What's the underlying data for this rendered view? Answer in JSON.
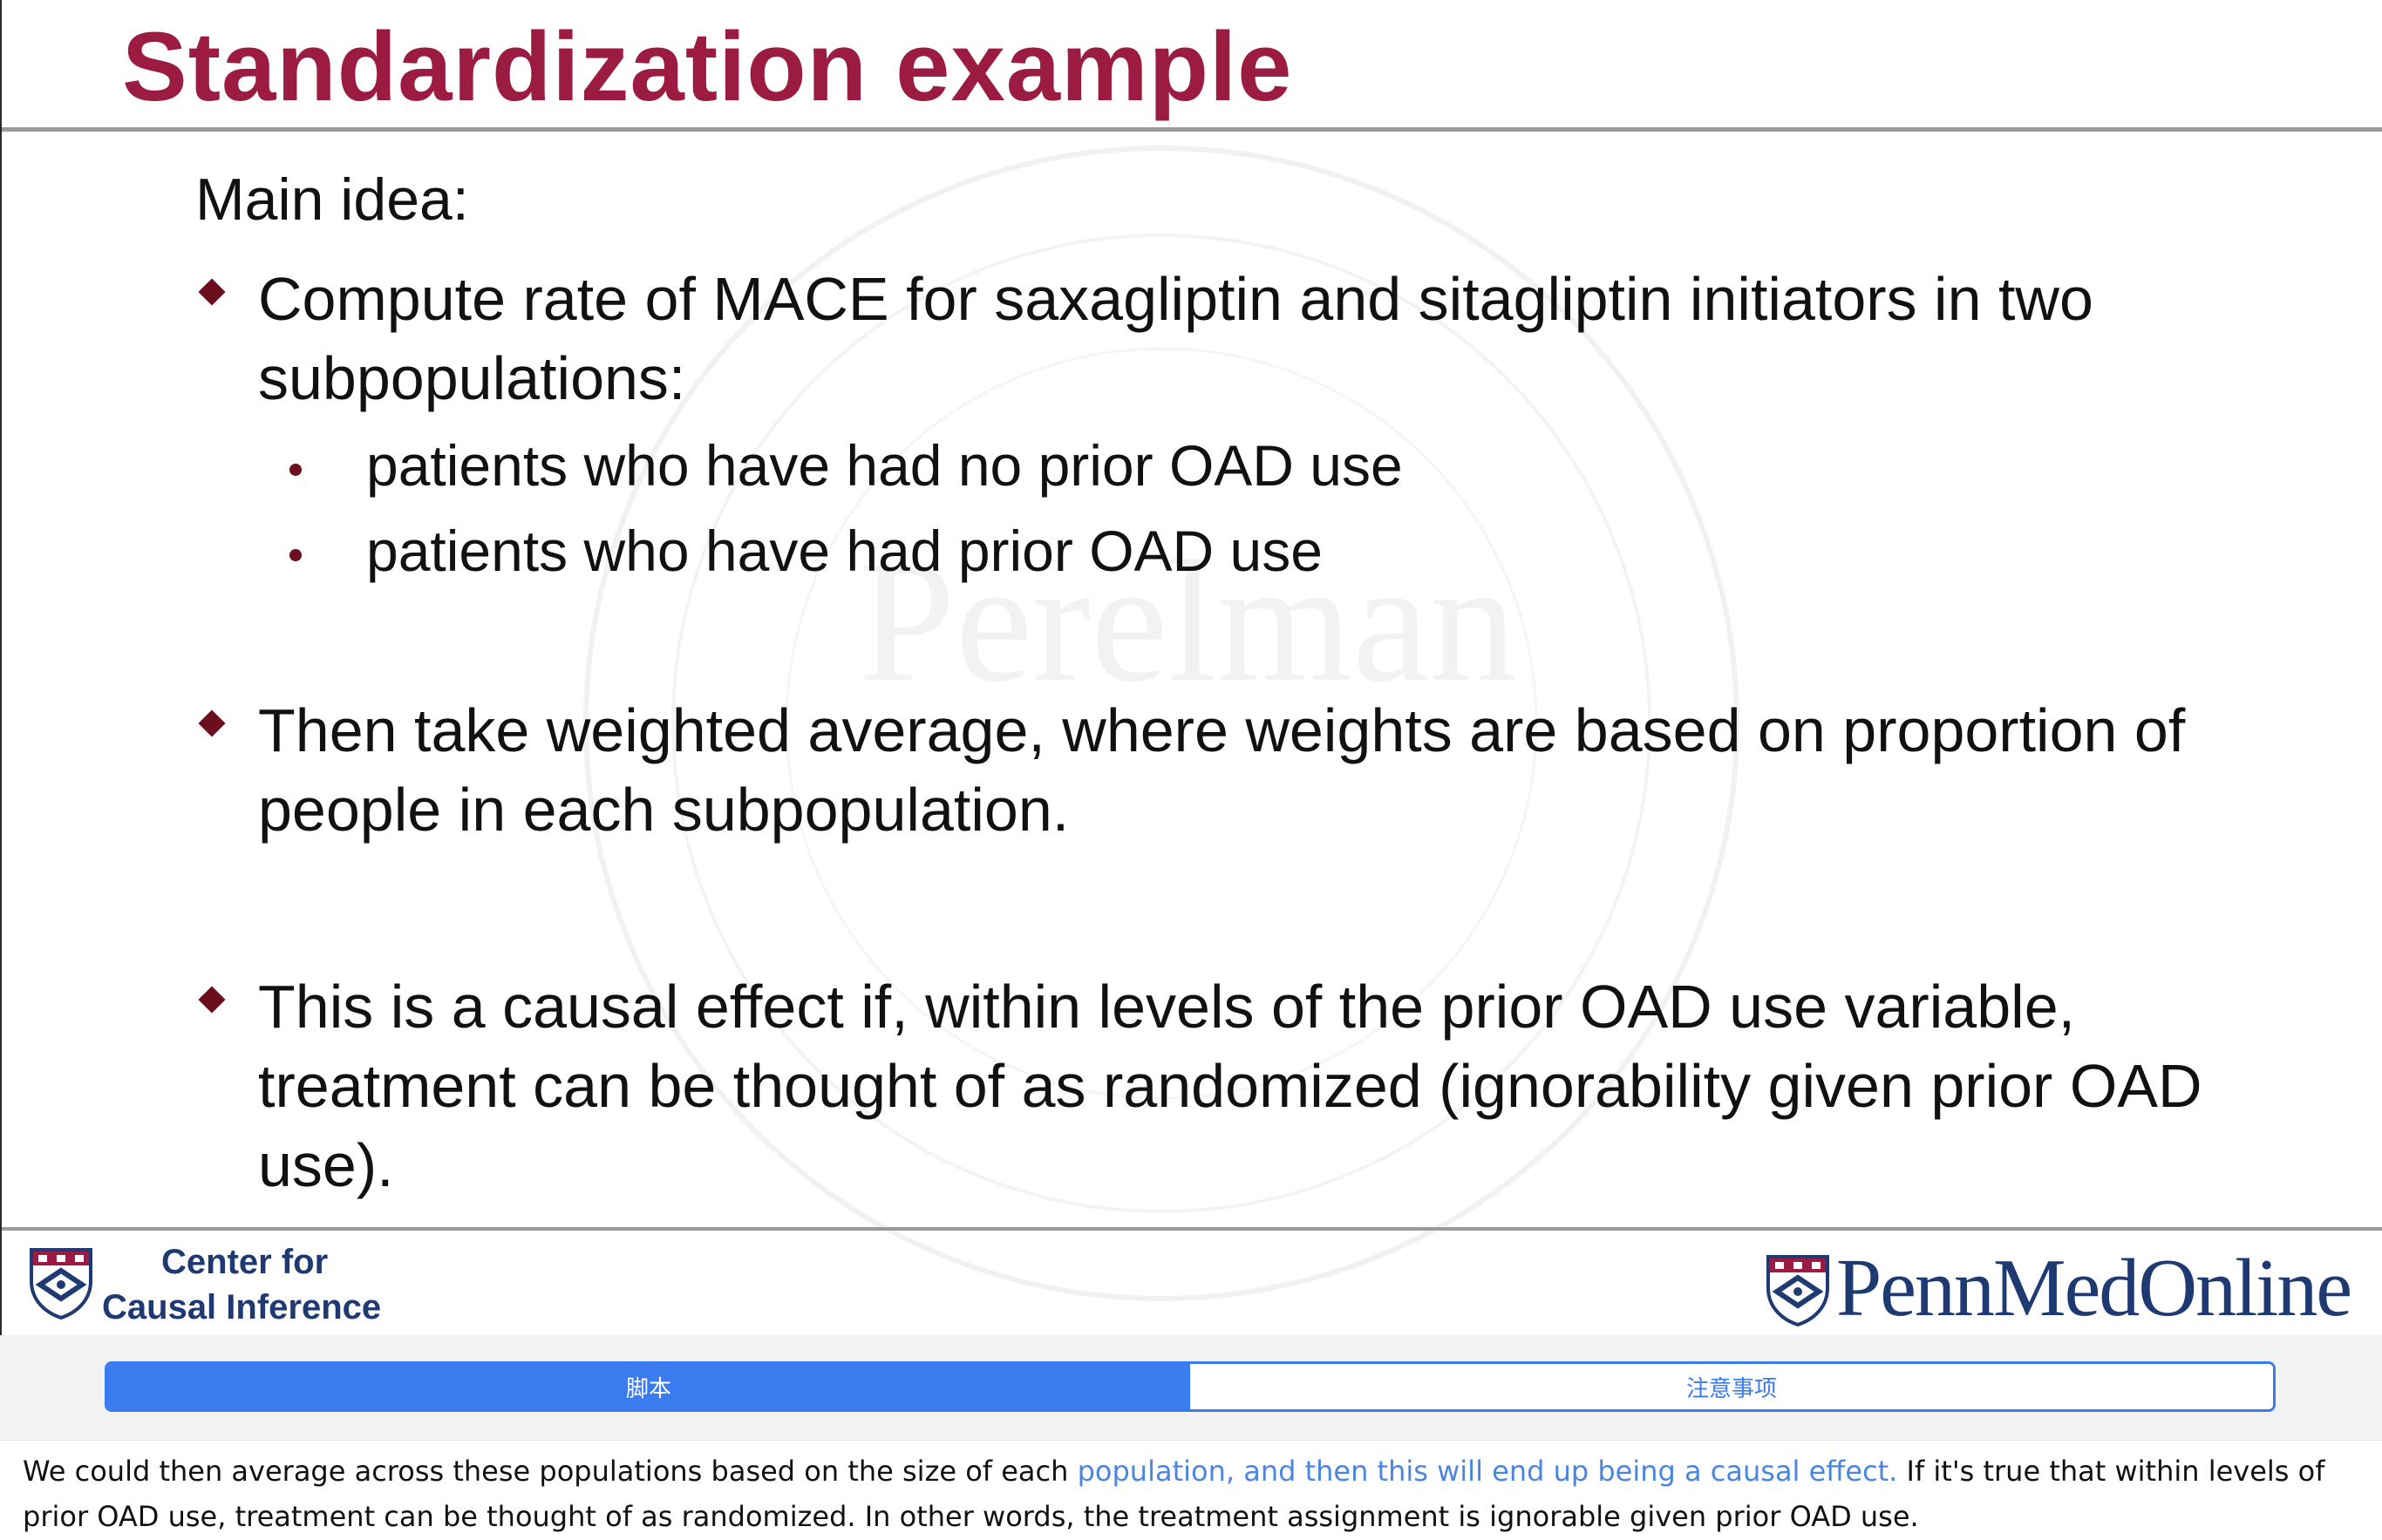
{
  "slide": {
    "title": "Standardization example",
    "main_idea": "Main idea:",
    "bullets": [
      "Compute rate of MACE for saxagliptin and sitagliptin initiators in two subpopulations:",
      "Then take weighted average, where weights are based on proportion of people in each subpopulation.",
      "This is a causal effect if, within levels of the prior OAD use variable, treatment can be thought of as randomized (ignorability given prior OAD use)."
    ],
    "sub_bullets": [
      "patients who have had no prior OAD use",
      "patients who have had prior OAD use"
    ],
    "watermark_text": "Perelman",
    "footer_left": {
      "line1": "Center for",
      "line2": "Causal Inference",
      "icon": "penn-shield-icon"
    },
    "footer_right": {
      "text": "PennMedOnline",
      "icon": "penn-shield-icon"
    }
  },
  "tabs": {
    "items": [
      {
        "label": "脚本",
        "active": true
      },
      {
        "label": "注意事项",
        "active": false
      }
    ]
  },
  "transcript": {
    "before": "We could then average across these populations based on the size of each ",
    "highlight": "population, and then this will end up being a causal effect.",
    "after": " If it's true that within levels of prior OAD use, treatment can be thought of as randomized. In other words, the treatment assignment is ignorable given prior OAD use."
  },
  "colors": {
    "title": "#9b1b42",
    "bullet_marker": "#6b0e1e",
    "penn_blue": "#1f3a72",
    "tab_accent": "#3b7bf0",
    "transcript_highlight": "#4a86e0"
  }
}
